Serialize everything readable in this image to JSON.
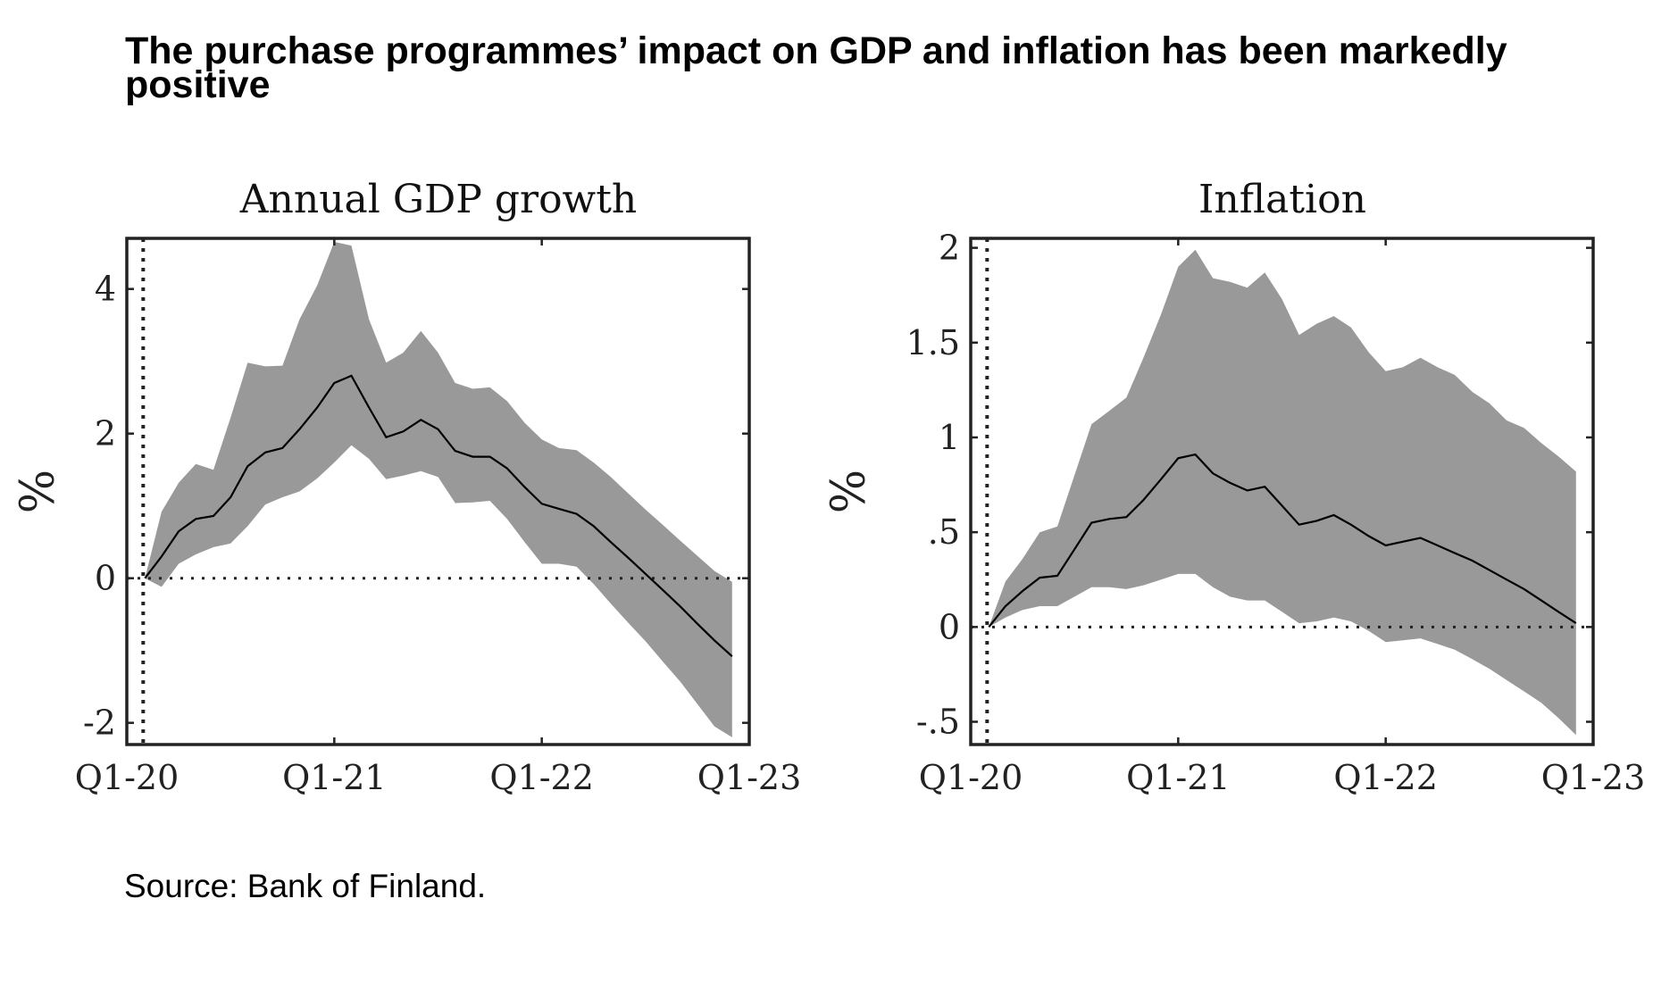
{
  "title": "The purchase programmes’ impact on GDP and inflation has been markedly positive",
  "source": "Source: Bank of Finland.",
  "colors": {
    "band": "#999999",
    "line": "#000000",
    "axis": "#222222"
  },
  "chart_data": [
    {
      "type": "line",
      "title": "Annual GDP growth",
      "ylabel": "%",
      "xlim": [
        0,
        12
      ],
      "ylim": [
        -2.3,
        4.7
      ],
      "yticks": [
        -2,
        0,
        2,
        4
      ],
      "xticks": [
        0,
        4,
        8,
        12
      ],
      "xtick_labels": [
        "Q1-20",
        "Q1-21",
        "Q1-22",
        "Q1-23"
      ],
      "x": [
        0.35,
        0.67,
        1,
        1.33,
        1.67,
        2,
        2.33,
        2.67,
        3,
        3.33,
        3.67,
        4,
        4.33,
        4.67,
        5,
        5.33,
        5.67,
        6,
        6.33,
        6.67,
        7,
        7.33,
        7.67,
        8,
        8.33,
        8.67,
        9,
        9.33,
        9.67,
        10,
        10.33,
        10.67,
        11,
        11.33,
        11.67
      ],
      "series": [
        {
          "role": "mean",
          "values": [
            0.0,
            0.3,
            0.65,
            0.82,
            0.86,
            1.12,
            1.55,
            1.74,
            1.8,
            2.06,
            2.36,
            2.7,
            2.8,
            2.36,
            1.95,
            2.03,
            2.19,
            2.06,
            1.76,
            1.68,
            1.68,
            1.52,
            1.26,
            1.03,
            0.96,
            0.89,
            0.72,
            0.5,
            0.28,
            0.06,
            -0.16,
            -0.39,
            -0.63,
            -0.86,
            -1.08
          ]
        },
        {
          "role": "lower",
          "values": [
            0.0,
            -0.12,
            0.2,
            0.33,
            0.43,
            0.48,
            0.72,
            1.02,
            1.12,
            1.2,
            1.38,
            1.6,
            1.84,
            1.65,
            1.37,
            1.42,
            1.48,
            1.4,
            1.04,
            1.05,
            1.07,
            0.82,
            0.5,
            0.2,
            0.2,
            0.16,
            -0.08,
            -0.35,
            -0.62,
            -0.87,
            -1.15,
            -1.43,
            -1.74,
            -2.05,
            -2.2
          ]
        },
        {
          "role": "upper",
          "values": [
            0.0,
            0.92,
            1.32,
            1.58,
            1.5,
            2.22,
            2.98,
            2.93,
            2.94,
            3.58,
            4.05,
            4.65,
            4.6,
            3.58,
            2.98,
            3.12,
            3.42,
            3.12,
            2.7,
            2.62,
            2.64,
            2.45,
            2.15,
            1.92,
            1.8,
            1.77,
            1.6,
            1.4,
            1.17,
            0.95,
            0.74,
            0.52,
            0.31,
            0.1,
            -0.05
          ]
        }
      ]
    },
    {
      "type": "line",
      "title": "Inflation",
      "ylabel": "%",
      "xlim": [
        0,
        12
      ],
      "ylim": [
        -0.62,
        2.05
      ],
      "yticks": [
        -0.5,
        0,
        0.5,
        1,
        1.5,
        2
      ],
      "xticks": [
        0,
        4,
        8,
        12
      ],
      "xtick_labels": [
        "Q1-20",
        "Q1-21",
        "Q1-22",
        "Q1-23"
      ],
      "x": [
        0.35,
        0.67,
        1,
        1.33,
        1.67,
        2,
        2.33,
        2.67,
        3,
        3.33,
        3.67,
        4,
        4.33,
        4.67,
        5,
        5.33,
        5.67,
        6,
        6.33,
        6.67,
        7,
        7.33,
        7.67,
        8,
        8.33,
        8.67,
        9,
        9.33,
        9.67,
        10,
        10.33,
        10.67,
        11,
        11.33,
        11.67
      ],
      "series": [
        {
          "role": "mean",
          "values": [
            0.0,
            0.11,
            0.19,
            0.26,
            0.27,
            0.41,
            0.55,
            0.57,
            0.58,
            0.67,
            0.78,
            0.89,
            0.91,
            0.81,
            0.76,
            0.72,
            0.74,
            0.64,
            0.54,
            0.56,
            0.59,
            0.54,
            0.48,
            0.43,
            0.45,
            0.47,
            0.43,
            0.39,
            0.35,
            0.3,
            0.25,
            0.2,
            0.14,
            0.08,
            0.02
          ]
        },
        {
          "role": "lower",
          "values": [
            0.0,
            0.05,
            0.09,
            0.11,
            0.11,
            0.16,
            0.21,
            0.21,
            0.2,
            0.22,
            0.25,
            0.28,
            0.28,
            0.21,
            0.16,
            0.14,
            0.14,
            0.08,
            0.02,
            0.03,
            0.05,
            0.03,
            -0.02,
            -0.08,
            -0.07,
            -0.06,
            -0.09,
            -0.12,
            -0.17,
            -0.22,
            -0.28,
            -0.34,
            -0.4,
            -0.48,
            -0.57
          ]
        },
        {
          "role": "upper",
          "values": [
            0.0,
            0.24,
            0.36,
            0.5,
            0.53,
            0.8,
            1.07,
            1.14,
            1.21,
            1.42,
            1.65,
            1.9,
            1.99,
            1.84,
            1.82,
            1.79,
            1.87,
            1.73,
            1.54,
            1.6,
            1.64,
            1.58,
            1.45,
            1.35,
            1.37,
            1.42,
            1.37,
            1.33,
            1.24,
            1.18,
            1.09,
            1.05,
            0.97,
            0.9,
            0.82
          ]
        }
      ]
    }
  ]
}
